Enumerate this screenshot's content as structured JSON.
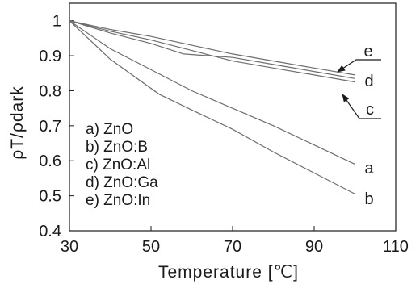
{
  "chart_data": {
    "type": "line",
    "xlabel": "Temperature [℃]",
    "ylabel": "ρT/ρdark",
    "xlim": [
      30,
      110
    ],
    "ylim": [
      0.4,
      1.05
    ],
    "x_ticks": [
      "30",
      "50",
      "70",
      "90",
      "110"
    ],
    "y_ticks": [
      "0.4",
      "0.5",
      "0.6",
      "0.7",
      "0.8",
      "0.9",
      "1"
    ],
    "grid": false,
    "legend_position": "bottom-left",
    "legend": [
      "a) ZnO",
      "b) ZnO:B",
      "c) ZnO:Al",
      "d) ZnO:Ga",
      "e) ZnO:In"
    ],
    "series": [
      {
        "name": "a",
        "x": [
          30,
          40,
          50,
          60,
          70,
          80,
          90,
          100
        ],
        "y": [
          1.0,
          0.92,
          0.86,
          0.8,
          0.75,
          0.7,
          0.645,
          0.59
        ]
      },
      {
        "name": "b",
        "x": [
          30,
          40,
          52,
          60,
          70,
          80,
          90,
          100
        ],
        "y": [
          1.0,
          0.89,
          0.79,
          0.745,
          0.69,
          0.625,
          0.565,
          0.505
        ]
      },
      {
        "name": "c",
        "x": [
          30,
          40,
          50,
          60,
          70,
          80,
          90,
          100
        ],
        "y": [
          1.0,
          0.97,
          0.945,
          0.915,
          0.885,
          0.865,
          0.845,
          0.825
        ]
      },
      {
        "name": "d",
        "x": [
          30,
          40,
          50,
          58,
          70,
          80,
          90,
          100
        ],
        "y": [
          1.0,
          0.965,
          0.935,
          0.905,
          0.895,
          0.875,
          0.855,
          0.835
        ]
      },
      {
        "name": "e",
        "x": [
          30,
          40,
          50,
          60,
          70,
          80,
          90,
          100
        ],
        "y": [
          1.0,
          0.975,
          0.955,
          0.93,
          0.905,
          0.885,
          0.865,
          0.845
        ]
      }
    ],
    "colors": {
      "line": "#6e6e6e",
      "axis": "#1a1a1a"
    }
  }
}
